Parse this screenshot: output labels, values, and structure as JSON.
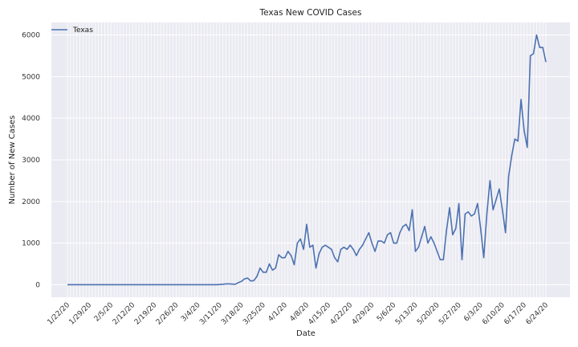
{
  "chart_data": {
    "type": "line",
    "title": "Texas New COVID Cases",
    "xlabel": "Date",
    "ylabel": "Number of New Cases",
    "x_tick_labels": [
      "1/22/20",
      "1/29/20",
      "2/5/20",
      "2/12/20",
      "2/19/20",
      "2/26/20",
      "3/4/20",
      "3/11/20",
      "3/18/20",
      "3/25/20",
      "4/1/20",
      "4/8/20",
      "4/15/20",
      "4/22/20",
      "4/29/20",
      "5/6/20",
      "5/13/20",
      "5/20/20",
      "5/27/20",
      "6/3/20",
      "6/10/20",
      "6/17/20",
      "6/24/20"
    ],
    "x_start": "1/22/20",
    "x_end": "6/28/20",
    "ylim": [
      -300,
      6300
    ],
    "y_ticks": [
      0,
      1000,
      2000,
      3000,
      4000,
      5000,
      6000
    ],
    "grid": true,
    "legend_position": "top-left",
    "series": [
      {
        "name": "Texas",
        "color": "#4c72b0",
        "values": [
          0,
          0,
          0,
          0,
          0,
          0,
          0,
          0,
          0,
          0,
          0,
          0,
          0,
          0,
          0,
          0,
          0,
          0,
          0,
          0,
          0,
          0,
          0,
          0,
          0,
          0,
          0,
          0,
          0,
          0,
          0,
          0,
          0,
          0,
          0,
          0,
          0,
          0,
          0,
          0,
          0,
          0,
          0,
          0,
          0,
          0,
          0,
          0,
          0,
          5,
          10,
          20,
          20,
          15,
          10,
          50,
          80,
          140,
          160,
          90,
          100,
          200,
          400,
          300,
          300,
          500,
          350,
          400,
          720,
          650,
          650,
          800,
          700,
          480,
          1000,
          1100,
          850,
          1450,
          900,
          950,
          400,
          750,
          900,
          950,
          900,
          850,
          650,
          550,
          850,
          900,
          850,
          950,
          850,
          700,
          850,
          950,
          1100,
          1250,
          1000,
          800,
          1050,
          1050,
          1000,
          1200,
          1250,
          1000,
          1000,
          1250,
          1400,
          1450,
          1300,
          1800,
          800,
          900,
          1150,
          1400,
          1000,
          1150,
          1000,
          800,
          600,
          600,
          1300,
          1850,
          1200,
          1350,
          1950,
          600,
          1700,
          1750,
          1650,
          1700,
          1950,
          1350,
          650,
          1700,
          2500,
          1800,
          2050,
          2300,
          1800,
          1250,
          2600,
          3100,
          3500,
          3450,
          4450,
          3700,
          3300,
          5500,
          5550,
          6000,
          5700,
          5700,
          5350
        ]
      }
    ]
  }
}
